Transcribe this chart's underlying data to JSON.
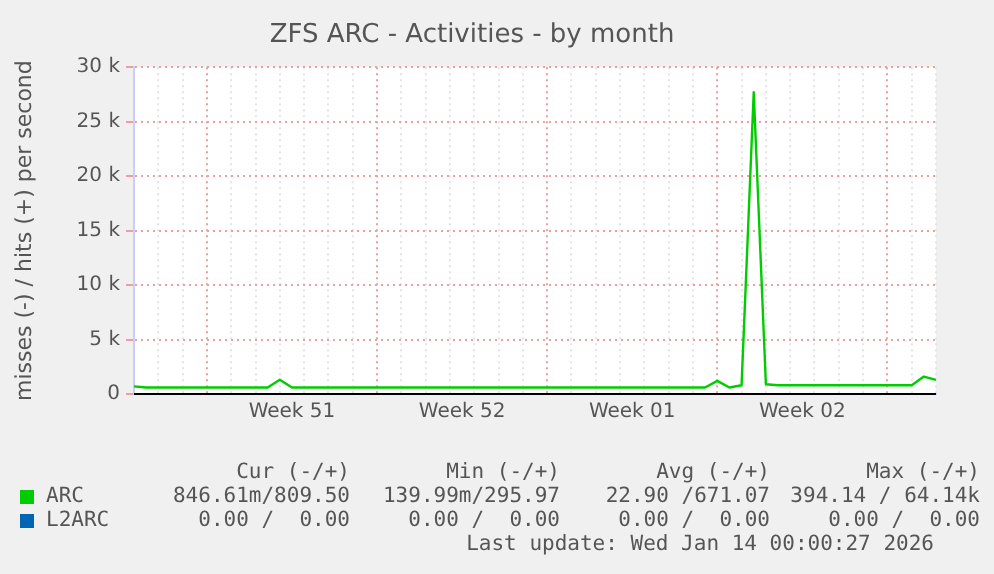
{
  "chart_data": {
    "type": "line",
    "title": "ZFS ARC - Activities - by month",
    "ylabel": "misses (-) / hits (+) per second",
    "categories": [
      null,
      null,
      null,
      null,
      null,
      null,
      null,
      null,
      null,
      null,
      null,
      null,
      null,
      "Week 51",
      null,
      null,
      null,
      null,
      null,
      null,
      null,
      null,
      null,
      null,
      null,
      null,
      null,
      "Week 52",
      null,
      null,
      null,
      null,
      null,
      null,
      null,
      null,
      null,
      null,
      null,
      null,
      null,
      "Week 01",
      null,
      null,
      null,
      null,
      null,
      null,
      null,
      null,
      null,
      null,
      null,
      null,
      null,
      "Week 02",
      null,
      null,
      null,
      null,
      null,
      null,
      null,
      null,
      null,
      null,
      null
    ],
    "series": [
      {
        "name": "ARC",
        "color": "#00cc00",
        "values": [
          700,
          600,
          600,
          600,
          600,
          600,
          600,
          600,
          600,
          600,
          600,
          600,
          1300,
          600,
          600,
          600,
          600,
          600,
          600,
          600,
          600,
          600,
          600,
          600,
          600,
          600,
          600,
          600,
          600,
          600,
          600,
          600,
          600,
          600,
          600,
          600,
          600,
          600,
          600,
          600,
          600,
          600,
          600,
          600,
          600,
          600,
          600,
          600,
          1200,
          600,
          800,
          27700,
          900,
          800,
          800,
          800,
          800,
          800,
          800,
          800,
          800,
          800,
          800,
          800,
          800,
          1600,
          1300
        ]
      },
      {
        "name": "L2ARC",
        "color": "#0066b3",
        "values": [
          null,
          null,
          null,
          null,
          null,
          null,
          null,
          null,
          null,
          null,
          null,
          null,
          null,
          null,
          null,
          null,
          null,
          null,
          null,
          null,
          null,
          null,
          null,
          null,
          null,
          null,
          null,
          null,
          null,
          null,
          null,
          null,
          null,
          null,
          null,
          null,
          null,
          null,
          null,
          null,
          null,
          null,
          null,
          null,
          null,
          null,
          null,
          null,
          null,
          null,
          null,
          null,
          null,
          null,
          null,
          null,
          null,
          null,
          null,
          null,
          null,
          null,
          null,
          null,
          null,
          null,
          null
        ]
      }
    ],
    "ylim": [
      0,
      30000
    ],
    "yticks": [
      0,
      {
        "value": 5000,
        "label": "5 k"
      },
      {
        "value": 10000,
        "label": "10 k"
      },
      {
        "value": 15000,
        "label": "15 k"
      },
      {
        "value": 20000,
        "label": "20 k"
      },
      {
        "value": 25000,
        "label": "25 k"
      },
      {
        "value": 30000,
        "label": "30 k"
      }
    ],
    "grid": true,
    "legend": "bottom left",
    "marker": "none",
    "line_style": "solid",
    "annotations": [
      "Cur (-/+)",
      "Min (-/+)",
      "Avg (-/+)",
      "Max (-/+)",
      "846.61m/809.50",
      "139.99m/295.97",
      "22.90 /671.07",
      "394.14 / 64.14k",
      "0.00 /  0.00",
      "0.00 /  0.00",
      "0.00 /  0.00",
      "0.00 /  0.00",
      "Last update: Wed Jan 14 00:00:27 2026"
    ]
  }
}
